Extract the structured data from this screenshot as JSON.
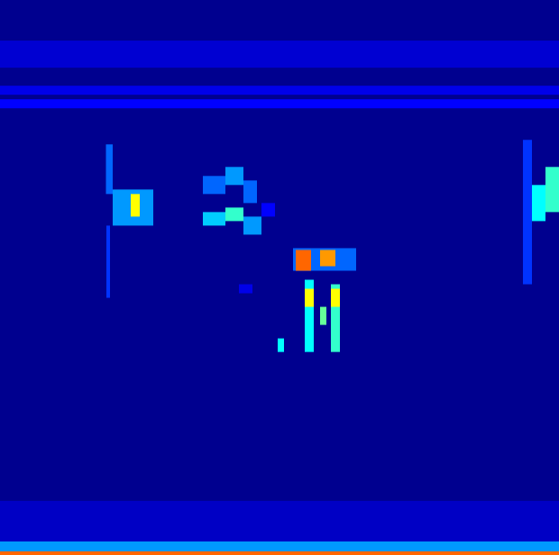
{
  "chart_data": {
    "type": "heatmap",
    "xlim": [
      0,
      124
    ],
    "ylim": [
      0,
      123
    ],
    "zlim": [
      0,
      1
    ],
    "tick_labels": false,
    "grid": false,
    "cells": [
      [
        0,
        124,
        108,
        114,
        0.15
      ],
      [
        0,
        124,
        102,
        104,
        0.2
      ],
      [
        0,
        124,
        99,
        101,
        0.25
      ],
      [
        0,
        124,
        3,
        12,
        0.12
      ],
      [
        0,
        124,
        0.8,
        3,
        0.4
      ],
      [
        0,
        124,
        0,
        0.8,
        0.9
      ],
      [
        23.6,
        24.4,
        57,
        73,
        0.3
      ],
      [
        23.5,
        25,
        80,
        91,
        0.35
      ],
      [
        25,
        34,
        73,
        81,
        0.4
      ],
      [
        29,
        31,
        75,
        80,
        0.75
      ],
      [
        45,
        50,
        80,
        84,
        0.35
      ],
      [
        50,
        54,
        82,
        86,
        0.4
      ],
      [
        54,
        57,
        78,
        83,
        0.35
      ],
      [
        45,
        50,
        73,
        76,
        0.45
      ],
      [
        50,
        54,
        74,
        77,
        0.55
      ],
      [
        54,
        58,
        71,
        75,
        0.4
      ],
      [
        58,
        61,
        75,
        78,
        0.25
      ],
      [
        53,
        56,
        58,
        60,
        0.2
      ],
      [
        65,
        79,
        63,
        68,
        0.35
      ],
      [
        65.6,
        69,
        63,
        67.6,
        0.9
      ],
      [
        71,
        74.4,
        64,
        67.6,
        0.85
      ],
      [
        67.6,
        69.6,
        45,
        61,
        0.5
      ],
      [
        67.6,
        69.6,
        55,
        59,
        0.75
      ],
      [
        71,
        72.4,
        51,
        55,
        0.6
      ],
      [
        73.4,
        75.4,
        45,
        60,
        0.55
      ],
      [
        73.4,
        75.4,
        55,
        59,
        0.75
      ],
      [
        61.6,
        63,
        45,
        48,
        0.5
      ],
      [
        116,
        118,
        60,
        92,
        0.3
      ],
      [
        118,
        121,
        74,
        82,
        0.5
      ],
      [
        121,
        124,
        76,
        86,
        0.55
      ]
    ]
  }
}
